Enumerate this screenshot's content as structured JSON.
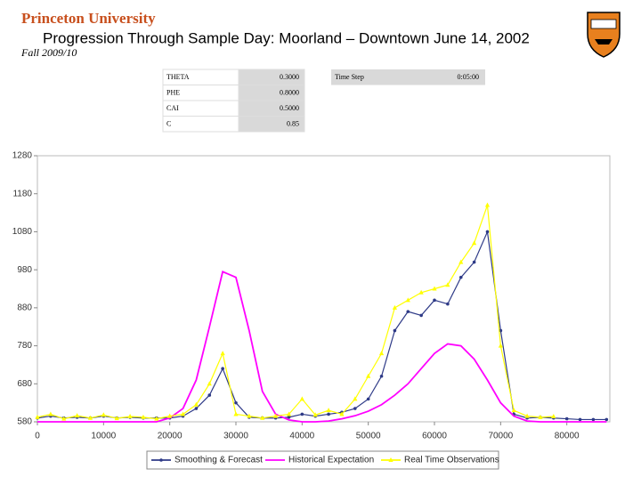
{
  "header": {
    "university": "Princeton University",
    "title": "Progression Through Sample Day:  Moorland – Downtown June 14, 2002",
    "term": "Fall 2009/10"
  },
  "parameters": {
    "rows": [
      [
        "THETA",
        "0.3000"
      ],
      [
        "PHE",
        "0.8000"
      ],
      [
        "CAI",
        "0.5000"
      ],
      [
        "C",
        "0.85"
      ]
    ],
    "time_step": [
      "Time Step",
      "0:05:00"
    ]
  },
  "chart_data": {
    "type": "line",
    "x": [
      0,
      2000,
      4000,
      6000,
      8000,
      10000,
      12000,
      14000,
      16000,
      18000,
      20000,
      22000,
      24000,
      26000,
      28000,
      30000,
      32000,
      34000,
      36000,
      38000,
      40000,
      42000,
      44000,
      46000,
      48000,
      50000,
      52000,
      54000,
      56000,
      58000,
      60000,
      62000,
      64000,
      66000,
      68000,
      70000,
      72000,
      74000,
      76000,
      78000,
      80000,
      82000,
      84000,
      86000
    ],
    "series": [
      {
        "name": "Smoothing & Forecast",
        "color": "#2e3a87",
        "marker": "circle",
        "values": [
          590,
          595,
          590,
          592,
          590,
          595,
          590,
          592,
          590,
          590,
          590,
          595,
          615,
          650,
          720,
          630,
          592,
          590,
          590,
          592,
          600,
          595,
          600,
          605,
          615,
          640,
          700,
          820,
          870,
          860,
          900,
          890,
          960,
          1000,
          1080,
          820,
          600,
          590,
          592,
          590,
          588,
          586,
          586,
          586
        ]
      },
      {
        "name": "Historical Expectation",
        "color": "#ff00ff",
        "marker": "none",
        "values": [
          580,
          580,
          580,
          580,
          580,
          580,
          580,
          580,
          580,
          580,
          590,
          615,
          690,
          830,
          975,
          960,
          820,
          660,
          600,
          585,
          580,
          580,
          582,
          588,
          596,
          608,
          625,
          650,
          680,
          720,
          760,
          785,
          780,
          745,
          690,
          630,
          595,
          582,
          580,
          580,
          580,
          580,
          580,
          580
        ]
      },
      {
        "name": "Real Time Observations",
        "color": "#ffff00",
        "marker": "triangle",
        "values": [
          592,
          600,
          588,
          596,
          590,
          598,
          589,
          594,
          592,
          588,
          595,
          600,
          625,
          680,
          760,
          600,
          595,
          590,
          595,
          600,
          640,
          598,
          610,
          600,
          640,
          700,
          760,
          880,
          900,
          920,
          930,
          940,
          1000,
          1050,
          1150,
          780,
          610,
          595,
          592,
          594,
          null,
          null,
          null,
          null
        ]
      }
    ],
    "xlim": [
      0,
      86500
    ],
    "xticks": [
      0,
      10000,
      20000,
      30000,
      40000,
      50000,
      60000,
      70000,
      80000
    ],
    "ylim": [
      580,
      1280
    ],
    "yticks": [
      580,
      680,
      780,
      880,
      980,
      1080,
      1180,
      1280
    ]
  }
}
